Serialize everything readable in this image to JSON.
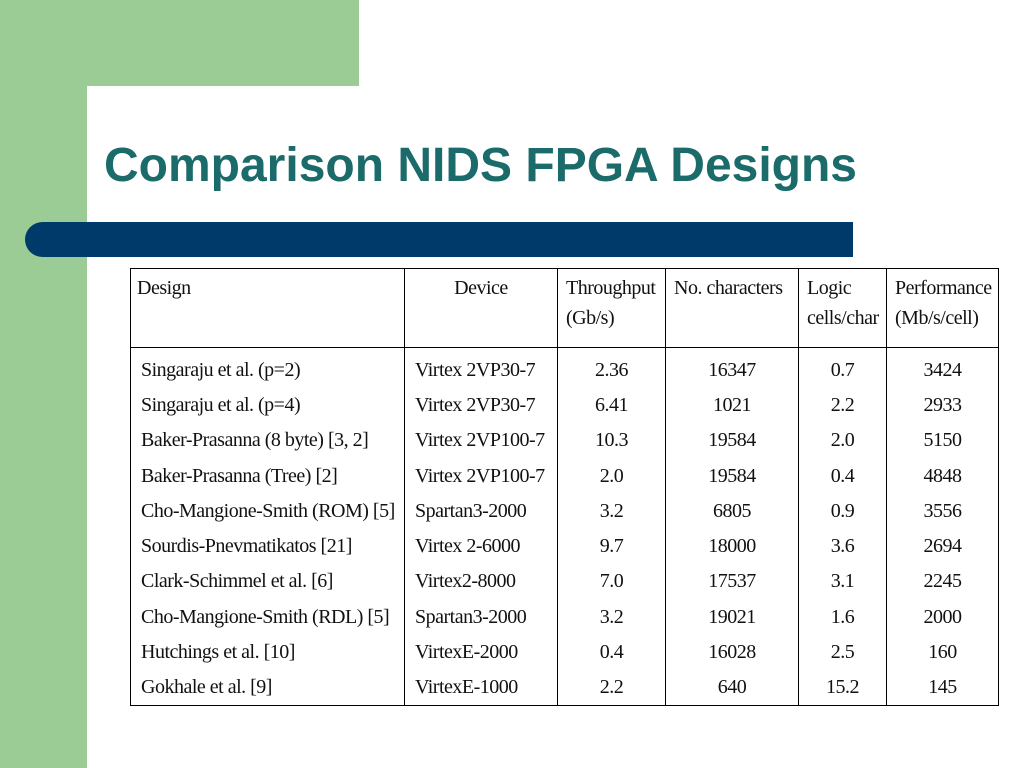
{
  "slide": {
    "title": "Comparison NIDS FPGA Designs"
  },
  "table": {
    "headers": [
      {
        "line1": "Design",
        "line2": ""
      },
      {
        "line1": "Device",
        "line2": ""
      },
      {
        "line1": "Throughput",
        "line2": "(Gb/s)"
      },
      {
        "line1": "No. characters",
        "line2": ""
      },
      {
        "line1": "Logic",
        "line2": "cells/char"
      },
      {
        "line1": "Performance",
        "line2": "(Mb/s/cell)"
      }
    ],
    "rows": [
      [
        "Singaraju et al. (p=2)",
        "Virtex 2VP30-7",
        "2.36",
        "16347",
        "0.7",
        "3424"
      ],
      [
        "Singaraju et al. (p=4)",
        "Virtex 2VP30-7",
        "6.41",
        "1021",
        "2.2",
        "2933"
      ],
      [
        "Baker-Prasanna (8 byte) [3, 2]",
        "Virtex 2VP100-7",
        "10.3",
        "19584",
        "2.0",
        "5150"
      ],
      [
        "Baker-Prasanna (Tree) [2]",
        "Virtex 2VP100-7",
        "2.0",
        "19584",
        "0.4",
        "4848"
      ],
      [
        "Cho-Mangione-Smith (ROM) [5]",
        "Spartan3-2000",
        "3.2",
        "6805",
        "0.9",
        "3556"
      ],
      [
        "Sourdis-Pnevmatikatos [21]",
        "Virtex 2-6000",
        "9.7",
        "18000",
        "3.6",
        "2694"
      ],
      [
        "Clark-Schimmel et al. [6]",
        "Virtex2-8000",
        "7.0",
        "17537",
        "3.1",
        "2245"
      ],
      [
        "Cho-Mangione-Smith (RDL) [5]",
        "Spartan3-2000",
        "3.2",
        "19021",
        "1.6",
        "2000"
      ],
      [
        "Hutchings et al. [10]",
        "VirtexE-2000",
        "0.4",
        "16028",
        "2.5",
        "160"
      ],
      [
        "Gokhale et al. [9]",
        "VirtexE-1000",
        "2.2",
        "640",
        "15.2",
        "145"
      ]
    ]
  },
  "colors": {
    "sidebar": "#9ccc96",
    "title": "#1b6b6b",
    "title_bar": "#003a6b"
  }
}
